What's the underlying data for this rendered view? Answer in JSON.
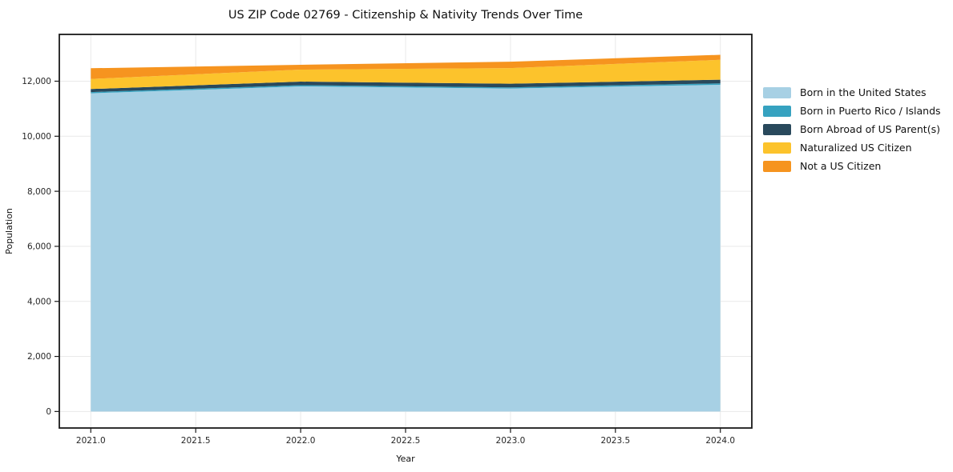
{
  "chart_data": {
    "type": "area",
    "stacked": true,
    "title": "US ZIP Code 02769 - Citizenship & Nativity Trends Over Time",
    "xlabel": "Year",
    "ylabel": "Population",
    "x": [
      2021,
      2022,
      2023,
      2024
    ],
    "series": [
      {
        "name": "Born in the United States",
        "color": "#A7D0E4",
        "values": [
          11560,
          11810,
          11735,
          11870
        ]
      },
      {
        "name": "Born in Puerto Rico / Islands",
        "color": "#36A2C0",
        "values": [
          45,
          45,
          40,
          50
        ]
      },
      {
        "name": "Born Abroad of US Parent(s)",
        "color": "#29495C",
        "values": [
          110,
          130,
          135,
          135
        ]
      },
      {
        "name": "Naturalized US Citizen",
        "color": "#FCC32C",
        "values": [
          365,
          435,
          565,
          720
        ]
      },
      {
        "name": "Not a US Citizen",
        "color": "#F6941F",
        "values": [
          390,
          175,
          235,
          185
        ]
      }
    ],
    "xlim": [
      2020.85,
      2024.15
    ],
    "ylim": [
      -600,
      13700
    ],
    "xticks": [
      {
        "v": 2021.0,
        "label": "2021.0"
      },
      {
        "v": 2021.5,
        "label": "2021.5"
      },
      {
        "v": 2022.0,
        "label": "2022.0"
      },
      {
        "v": 2022.5,
        "label": "2022.5"
      },
      {
        "v": 2023.0,
        "label": "2023.0"
      },
      {
        "v": 2023.5,
        "label": "2023.5"
      },
      {
        "v": 2024.0,
        "label": "2024.0"
      }
    ],
    "yticks": [
      {
        "v": 0,
        "label": "0"
      },
      {
        "v": 2000,
        "label": "2,000"
      },
      {
        "v": 4000,
        "label": "4,000"
      },
      {
        "v": 6000,
        "label": "6,000"
      },
      {
        "v": 8000,
        "label": "8,000"
      },
      {
        "v": 10000,
        "label": "10,000"
      },
      {
        "v": 12000,
        "label": "12,000"
      }
    ],
    "grid": true,
    "grid_color": "#E9E9E9",
    "axis_color": "#1A1A1A",
    "tick_label_color": "#262626",
    "legend_position": "right"
  }
}
